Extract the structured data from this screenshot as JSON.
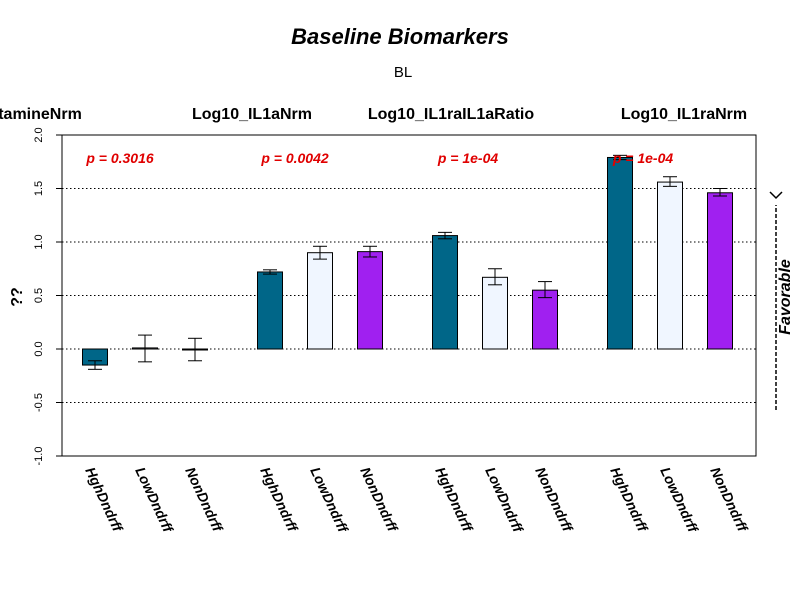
{
  "chart_data": {
    "type": "bar",
    "title": "Baseline Biomarkers",
    "subtitle": "BL",
    "ylabel": "??",
    "right_label": "Favorable",
    "ylim": [
      -1.0,
      2.0
    ],
    "yticks": [
      "-1.0",
      "-0.5",
      "0.0",
      "0.5",
      "1.0",
      "1.5",
      "2.0"
    ],
    "grid": "dotted horizontal lines at 1.5, 1.0, 0.5, 0.0, -0.5",
    "group_colors": [
      "#006688",
      "#f0f6ff",
      "#a020f0"
    ],
    "panels": [
      {
        "label": "tamineNrm",
        "p_value": "p = 0.3016",
        "categories": [
          "HghDndrff",
          "LowDndrff",
          "NonDndrff"
        ],
        "values": [
          -0.15,
          0.01,
          0.0
        ],
        "err_low": [
          -0.19,
          -0.12,
          -0.11
        ],
        "err_high": [
          -0.11,
          0.13,
          0.1
        ]
      },
      {
        "label": "Log10_IL1aNrm",
        "p_value": "p = 0.0042",
        "categories": [
          "HghDndrff",
          "LowDndrff",
          "NonDndrff"
        ],
        "values": [
          0.72,
          0.9,
          0.91
        ],
        "err_low": [
          0.7,
          0.84,
          0.86
        ],
        "err_high": [
          0.74,
          0.96,
          0.96
        ]
      },
      {
        "label": "Log10_IL1raIL1aRatio",
        "p_value": "p = 1e-04",
        "categories": [
          "HghDndrff",
          "LowDndrff",
          "NonDndrff"
        ],
        "values": [
          1.06,
          0.67,
          0.55
        ],
        "err_low": [
          1.03,
          0.6,
          0.48
        ],
        "err_high": [
          1.09,
          0.75,
          0.63
        ]
      },
      {
        "label": "Log10_IL1raNrm",
        "p_value": "p = 1e-04",
        "categories": [
          "HghDndrff",
          "LowDndrff",
          "NonDndrff"
        ],
        "values": [
          1.79,
          1.56,
          1.46
        ],
        "err_low": [
          1.77,
          1.52,
          1.43
        ],
        "err_high": [
          1.81,
          1.61,
          1.5
        ]
      }
    ]
  }
}
